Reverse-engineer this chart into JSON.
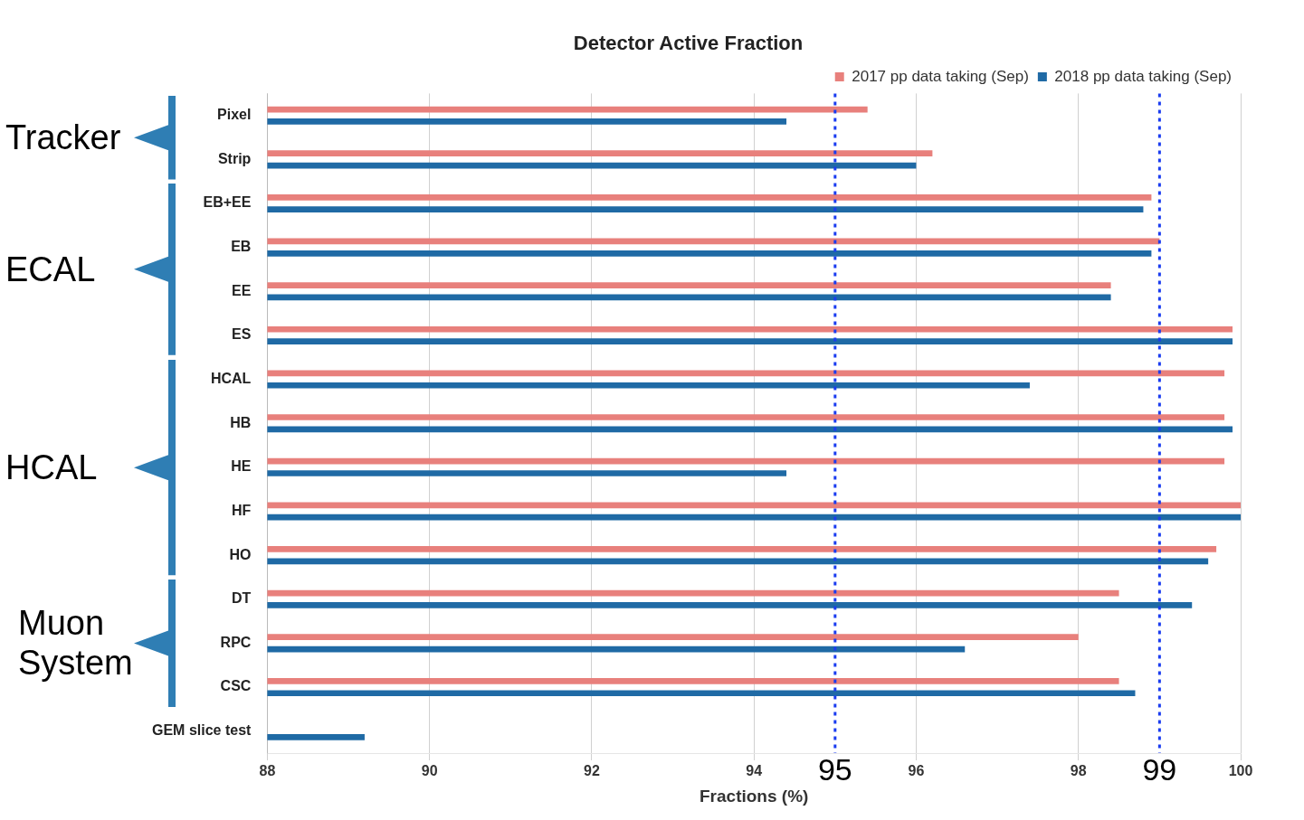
{
  "chart_data": {
    "type": "bar",
    "orientation": "horizontal",
    "title": "Detector Active Fraction",
    "xlabel": "Fractions (%)",
    "categories": [
      "Pixel",
      "Strip",
      "EB+EE",
      "EB",
      "EE",
      "ES",
      "HCAL",
      "HB",
      "HE",
      "HF",
      "HO",
      "DT",
      "RPC",
      "CSC",
      "GEM slice test"
    ],
    "series": [
      {
        "name": "2017 pp data taking (Sep)",
        "color": "#e8807c",
        "values": [
          95.4,
          96.2,
          98.9,
          99.0,
          98.4,
          99.9,
          99.8,
          99.8,
          99.8,
          100,
          99.7,
          98.5,
          98.0,
          98.5,
          null
        ]
      },
      {
        "name": "2018 pp data taking (Sep)",
        "color": "#1f6aa5",
        "values": [
          94.4,
          96.0,
          98.8,
          98.9,
          98.4,
          99.9,
          97.4,
          99.9,
          94.4,
          100,
          99.6,
          99.4,
          96.6,
          98.7,
          89.2
        ]
      }
    ],
    "xlim": [
      88,
      100
    ],
    "xticks": [
      88,
      90,
      92,
      94,
      96,
      98,
      100
    ],
    "grid": "x",
    "legend": "top right",
    "ref_lines": [
      {
        "axis": "x",
        "value": 95,
        "label": "95",
        "color": "#1a3cf0",
        "line_style": "dotted"
      },
      {
        "axis": "x",
        "value": 99,
        "label": "99",
        "color": "#1a3cf0",
        "line_style": "dotted"
      }
    ],
    "annotations": [
      "Tracker",
      "ECAL",
      "HCAL",
      "Muon System"
    ]
  }
}
